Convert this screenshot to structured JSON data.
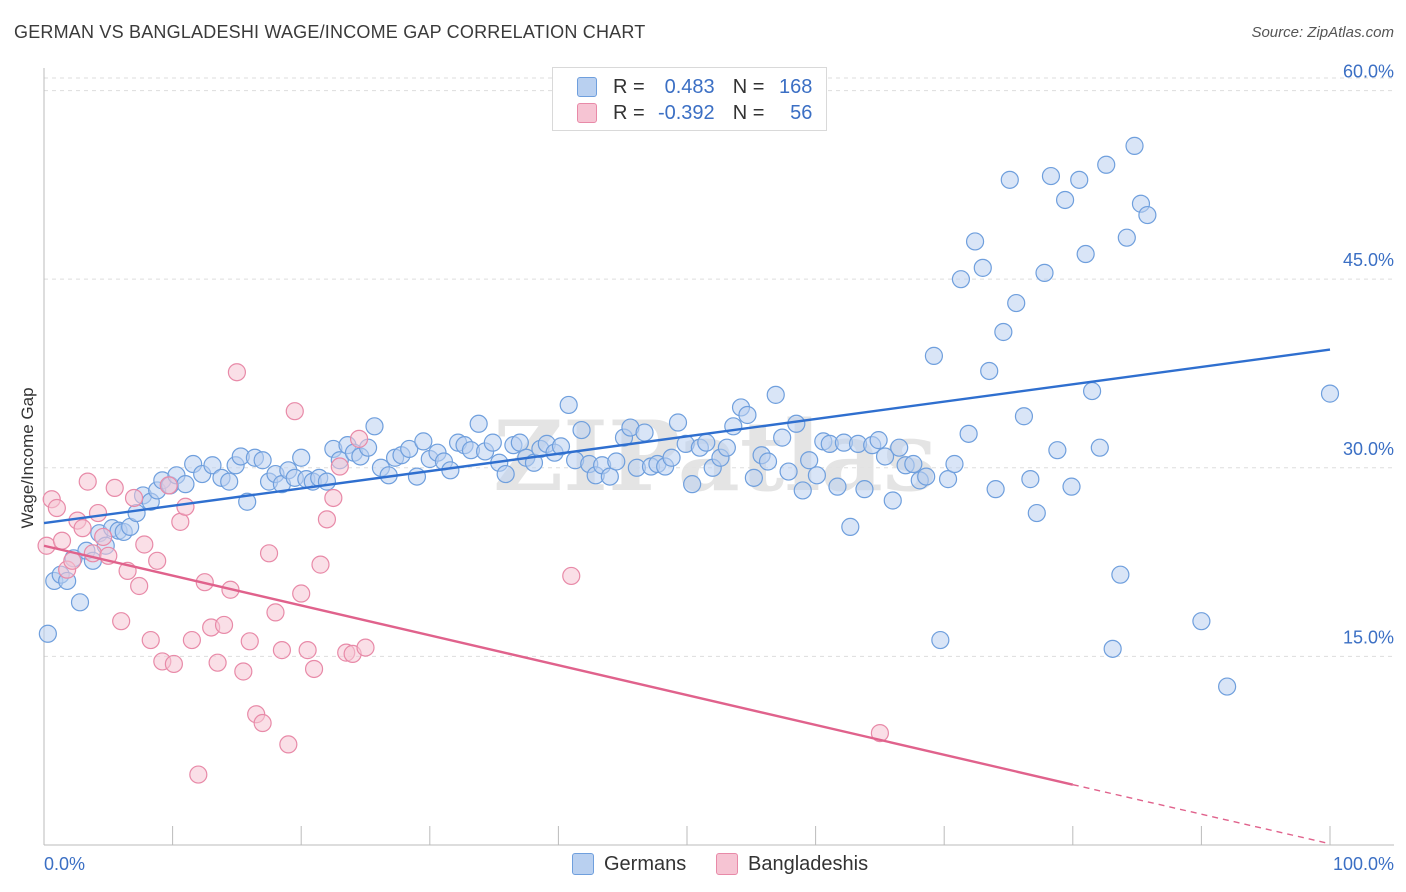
{
  "header": {
    "title": "GERMAN VS BANGLADESHI WAGE/INCOME GAP CORRELATION CHART",
    "source": "Source: ZipAtlas.com"
  },
  "legend": {
    "r_label": "R =",
    "n_label": "N =",
    "series": [
      {
        "name": "Germans",
        "r": "0.483",
        "n": "168",
        "color": "#6f9fdd",
        "fill": "#b9d0f0"
      },
      {
        "name": "Bangladeshis",
        "r": "-0.392",
        "n": "56",
        "color": "#e88aa8",
        "fill": "#f6c4d3"
      }
    ]
  },
  "chart_data": {
    "type": "scatter",
    "title": "GERMAN VS BANGLADESHI WAGE/INCOME GAP CORRELATION CHART",
    "xlabel": "",
    "ylabel": "Wage/Income Gap",
    "xlim": [
      0,
      100
    ],
    "ylim": [
      0,
      61
    ],
    "x_tick_labels": [
      "0.0%",
      "100.0%"
    ],
    "y_ticks": [
      15,
      30,
      45,
      60
    ],
    "y_tick_labels": [
      "15.0%",
      "30.0%",
      "45.0%",
      "60.0%"
    ],
    "grid": true,
    "watermark": "ZIPatlas",
    "series": [
      {
        "name": "Germans",
        "color": "#6f9fdd",
        "trend": {
          "x0": 0,
          "y0": 25.6,
          "x1": 100,
          "y1": 39.4
        },
        "points": [
          [
            0.3,
            16.8
          ],
          [
            0.8,
            21.0
          ],
          [
            1.3,
            21.5
          ],
          [
            1.8,
            21.0
          ],
          [
            2.3,
            22.8
          ],
          [
            2.8,
            19.3
          ],
          [
            3.3,
            23.4
          ],
          [
            3.8,
            22.6
          ],
          [
            4.3,
            24.8
          ],
          [
            4.8,
            23.8
          ],
          [
            5.3,
            25.2
          ],
          [
            5.8,
            25.0
          ],
          [
            6.2,
            24.9
          ],
          [
            6.7,
            25.3
          ],
          [
            7.2,
            26.4
          ],
          [
            7.7,
            27.8
          ],
          [
            8.3,
            27.3
          ],
          [
            8.8,
            28.2
          ],
          [
            9.2,
            29.0
          ],
          [
            9.8,
            28.6
          ],
          [
            10.3,
            29.4
          ],
          [
            11.0,
            28.7
          ],
          [
            11.6,
            30.3
          ],
          [
            12.3,
            29.5
          ],
          [
            13.1,
            30.2
          ],
          [
            13.8,
            29.2
          ],
          [
            14.4,
            28.9
          ],
          [
            14.9,
            30.2
          ],
          [
            15.3,
            30.9
          ],
          [
            15.8,
            27.3
          ],
          [
            16.4,
            30.8
          ],
          [
            17.0,
            30.6
          ],
          [
            17.5,
            28.9
          ],
          [
            18.0,
            29.5
          ],
          [
            18.5,
            28.7
          ],
          [
            19.0,
            29.8
          ],
          [
            19.5,
            29.2
          ],
          [
            20.0,
            30.8
          ],
          [
            20.4,
            29.1
          ],
          [
            20.9,
            28.9
          ],
          [
            21.4,
            29.2
          ],
          [
            22.0,
            28.9
          ],
          [
            22.5,
            31.5
          ],
          [
            23.0,
            30.6
          ],
          [
            23.6,
            31.8
          ],
          [
            24.1,
            31.2
          ],
          [
            24.6,
            30.9
          ],
          [
            25.2,
            31.6
          ],
          [
            25.7,
            33.3
          ],
          [
            26.2,
            30.0
          ],
          [
            26.8,
            29.4
          ],
          [
            27.3,
            30.8
          ],
          [
            27.8,
            31.0
          ],
          [
            28.4,
            31.5
          ],
          [
            29.0,
            29.3
          ],
          [
            29.5,
            32.1
          ],
          [
            30.0,
            30.7
          ],
          [
            30.6,
            31.2
          ],
          [
            31.1,
            30.5
          ],
          [
            31.6,
            29.8
          ],
          [
            32.2,
            32.0
          ],
          [
            32.7,
            31.8
          ],
          [
            33.2,
            31.4
          ],
          [
            33.8,
            33.5
          ],
          [
            34.3,
            31.3
          ],
          [
            34.9,
            32.0
          ],
          [
            35.4,
            30.4
          ],
          [
            35.9,
            29.5
          ],
          [
            36.5,
            31.8
          ],
          [
            37.0,
            32.0
          ],
          [
            37.5,
            30.8
          ],
          [
            38.1,
            30.4
          ],
          [
            38.6,
            31.5
          ],
          [
            39.1,
            31.9
          ],
          [
            39.7,
            31.2
          ],
          [
            40.2,
            31.7
          ],
          [
            40.8,
            35.0
          ],
          [
            41.3,
            30.6
          ],
          [
            41.8,
            33.0
          ],
          [
            42.4,
            30.3
          ],
          [
            42.9,
            29.4
          ],
          [
            43.4,
            30.2
          ],
          [
            44.0,
            29.3
          ],
          [
            44.5,
            30.5
          ],
          [
            45.1,
            32.4
          ],
          [
            45.6,
            33.2
          ],
          [
            46.1,
            30.0
          ],
          [
            46.7,
            32.8
          ],
          [
            47.2,
            30.1
          ],
          [
            47.7,
            30.3
          ],
          [
            48.3,
            30.1
          ],
          [
            48.8,
            30.8
          ],
          [
            49.3,
            33.6
          ],
          [
            49.9,
            31.9
          ],
          [
            50.4,
            28.7
          ],
          [
            51.0,
            31.6
          ],
          [
            51.5,
            32.0
          ],
          [
            52.0,
            30.0
          ],
          [
            52.6,
            30.8
          ],
          [
            53.1,
            31.6
          ],
          [
            53.6,
            33.3
          ],
          [
            54.2,
            34.8
          ],
          [
            54.7,
            34.2
          ],
          [
            55.2,
            29.2
          ],
          [
            55.8,
            31.0
          ],
          [
            56.3,
            30.5
          ],
          [
            56.9,
            35.8
          ],
          [
            57.4,
            32.4
          ],
          [
            57.9,
            29.7
          ],
          [
            58.5,
            33.5
          ],
          [
            59.0,
            28.2
          ],
          [
            59.5,
            30.6
          ],
          [
            60.1,
            29.4
          ],
          [
            60.6,
            32.1
          ],
          [
            61.1,
            31.9
          ],
          [
            61.7,
            28.5
          ],
          [
            62.2,
            32.0
          ],
          [
            62.7,
            25.3
          ],
          [
            63.3,
            31.9
          ],
          [
            63.8,
            28.3
          ],
          [
            64.4,
            31.8
          ],
          [
            64.9,
            32.2
          ],
          [
            65.4,
            30.9
          ],
          [
            66.0,
            27.4
          ],
          [
            66.5,
            31.6
          ],
          [
            67.0,
            30.2
          ],
          [
            67.6,
            30.3
          ],
          [
            68.1,
            29.0
          ],
          [
            68.6,
            29.3
          ],
          [
            69.2,
            38.9
          ],
          [
            69.7,
            16.3
          ],
          [
            70.3,
            29.1
          ],
          [
            70.8,
            30.3
          ],
          [
            71.3,
            45.0
          ],
          [
            71.9,
            32.7
          ],
          [
            72.4,
            48.0
          ],
          [
            73.0,
            45.9
          ],
          [
            73.5,
            37.7
          ],
          [
            74.0,
            28.3
          ],
          [
            74.6,
            40.8
          ],
          [
            75.1,
            52.9
          ],
          [
            75.6,
            43.1
          ],
          [
            76.2,
            34.1
          ],
          [
            76.7,
            29.1
          ],
          [
            77.2,
            26.4
          ],
          [
            77.8,
            45.5
          ],
          [
            78.3,
            53.2
          ],
          [
            78.8,
            31.4
          ],
          [
            79.4,
            51.3
          ],
          [
            79.9,
            28.5
          ],
          [
            80.5,
            52.9
          ],
          [
            81.0,
            47.0
          ],
          [
            81.5,
            36.1
          ],
          [
            82.1,
            31.6
          ],
          [
            82.6,
            54.1
          ],
          [
            83.1,
            15.6
          ],
          [
            83.7,
            21.5
          ],
          [
            84.2,
            48.3
          ],
          [
            84.8,
            55.6
          ],
          [
            85.3,
            51.0
          ],
          [
            85.8,
            50.1
          ],
          [
            90.0,
            17.8
          ],
          [
            92.0,
            12.6
          ],
          [
            100.0,
            35.9
          ]
        ]
      },
      {
        "name": "Bangladeshis",
        "color": "#e88aa8",
        "trend": {
          "x0": 0,
          "y0": 23.8,
          "x1": 80,
          "y1": 4.8
        },
        "trend_dashed": {
          "x0": 80,
          "y0": 4.8,
          "x1": 100,
          "y1": 0.1
        },
        "points": [
          [
            0.2,
            23.8
          ],
          [
            0.6,
            27.5
          ],
          [
            1.0,
            26.8
          ],
          [
            1.4,
            24.2
          ],
          [
            1.8,
            21.9
          ],
          [
            2.2,
            22.6
          ],
          [
            2.6,
            25.8
          ],
          [
            3.0,
            25.2
          ],
          [
            3.4,
            28.9
          ],
          [
            3.8,
            23.2
          ],
          [
            4.2,
            26.4
          ],
          [
            4.6,
            24.5
          ],
          [
            5.0,
            23.0
          ],
          [
            5.5,
            28.4
          ],
          [
            6.0,
            17.8
          ],
          [
            6.5,
            21.8
          ],
          [
            7.0,
            27.6
          ],
          [
            7.4,
            20.6
          ],
          [
            7.8,
            23.9
          ],
          [
            8.3,
            16.3
          ],
          [
            8.8,
            22.6
          ],
          [
            9.2,
            14.6
          ],
          [
            9.7,
            28.6
          ],
          [
            10.1,
            14.4
          ],
          [
            10.6,
            25.7
          ],
          [
            11.0,
            26.9
          ],
          [
            11.5,
            16.3
          ],
          [
            12.0,
            5.6
          ],
          [
            12.5,
            20.9
          ],
          [
            13.0,
            17.3
          ],
          [
            13.5,
            14.5
          ],
          [
            14.0,
            17.5
          ],
          [
            14.5,
            20.3
          ],
          [
            15.0,
            37.6
          ],
          [
            15.5,
            13.8
          ],
          [
            16.0,
            16.2
          ],
          [
            16.5,
            10.4
          ],
          [
            17.0,
            9.7
          ],
          [
            17.5,
            23.2
          ],
          [
            18.0,
            18.5
          ],
          [
            18.5,
            15.5
          ],
          [
            19.0,
            8.0
          ],
          [
            19.5,
            34.5
          ],
          [
            20.0,
            20.0
          ],
          [
            20.5,
            15.5
          ],
          [
            21.0,
            14.0
          ],
          [
            21.5,
            22.3
          ],
          [
            22.0,
            25.9
          ],
          [
            22.5,
            27.6
          ],
          [
            23.0,
            30.1
          ],
          [
            23.5,
            15.3
          ],
          [
            24.0,
            15.2
          ],
          [
            24.5,
            32.3
          ],
          [
            25.0,
            15.7
          ],
          [
            41.0,
            21.4
          ],
          [
            65.0,
            8.9
          ]
        ]
      }
    ]
  }
}
